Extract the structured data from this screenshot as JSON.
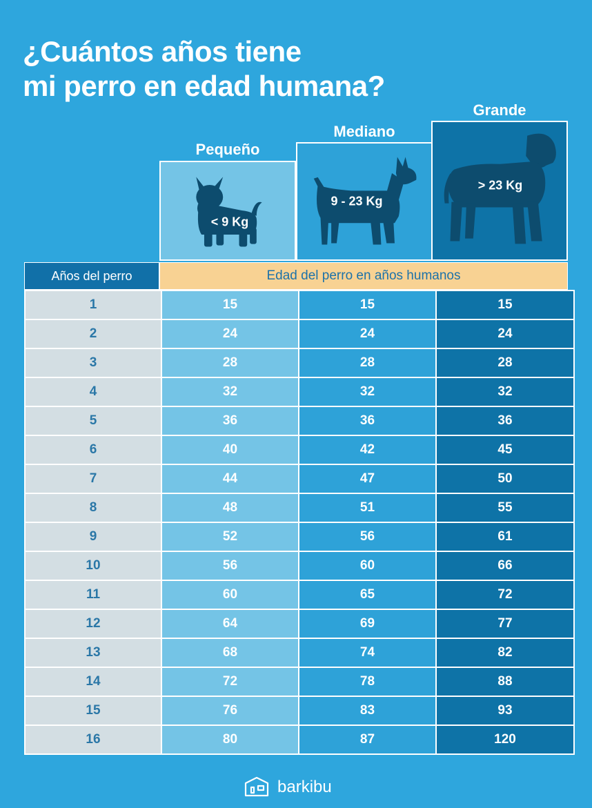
{
  "title": {
    "line1": "¿Cuántos años tiene",
    "line2": "mi perro en edad humana?"
  },
  "sizes": [
    {
      "label": "Pequeño",
      "weight": "< 9 Kg",
      "icon": "small-dog-icon",
      "color": "#74c4e6"
    },
    {
      "label": "Mediano",
      "weight": "9 - 23 Kg",
      "icon": "medium-dog-icon",
      "color": "#2ea2d8"
    },
    {
      "label": "Grande",
      "weight": "> 23 Kg",
      "icon": "large-dog-icon",
      "color": "#0e73a7"
    }
  ],
  "table": {
    "left_header": "Años del perro",
    "right_header": "Edad del perro en años humanos",
    "rows": [
      [
        "1",
        "15",
        "15",
        "15"
      ],
      [
        "2",
        "24",
        "24",
        "24"
      ],
      [
        "3",
        "28",
        "28",
        "28"
      ],
      [
        "4",
        "32",
        "32",
        "32"
      ],
      [
        "5",
        "36",
        "36",
        "36"
      ],
      [
        "6",
        "40",
        "42",
        "45"
      ],
      [
        "7",
        "44",
        "47",
        "50"
      ],
      [
        "8",
        "48",
        "51",
        "55"
      ],
      [
        "9",
        "52",
        "56",
        "61"
      ],
      [
        "10",
        "56",
        "60",
        "66"
      ],
      [
        "11",
        "60",
        "65",
        "72"
      ],
      [
        "12",
        "64",
        "69",
        "77"
      ],
      [
        "13",
        "68",
        "74",
        "82"
      ],
      [
        "14",
        "72",
        "78",
        "88"
      ],
      [
        "15",
        "76",
        "83",
        "93"
      ],
      [
        "16",
        "80",
        "87",
        "120"
      ]
    ]
  },
  "brand": {
    "name": "barkibu",
    "icon": "barkibu-logo-icon"
  },
  "colors": {
    "background": "#2ea6dd",
    "header_dark": "#1170a8",
    "header_accent": "#f8d293",
    "silhouette": "#0d4c6e"
  }
}
